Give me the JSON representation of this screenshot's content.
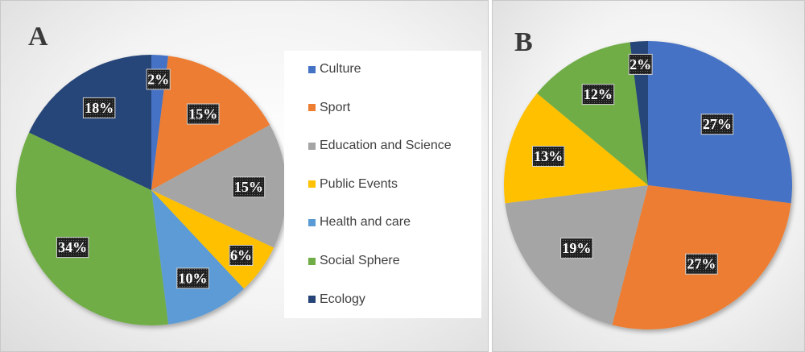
{
  "chart_data": [
    {
      "type": "pie",
      "panel_label": "A",
      "start_angle_deg": 0,
      "direction": "clockwise",
      "legend": "right",
      "slices": [
        {
          "name": "Culture",
          "value": 2,
          "label": "2%",
          "color": "#4472C4"
        },
        {
          "name": "Sport",
          "value": 15,
          "label": "15%",
          "color": "#ED7D31"
        },
        {
          "name": "Education and Science",
          "value": 15,
          "label": "15%",
          "color": "#A5A5A5"
        },
        {
          "name": "Public Events",
          "value": 6,
          "label": "6%",
          "color": "#FFC000"
        },
        {
          "name": "Health and care",
          "value": 10,
          "label": "10%",
          "color": "#5B9BD5"
        },
        {
          "name": "Social Sphere",
          "value": 34,
          "label": "34%",
          "color": "#70AD47"
        },
        {
          "name": "Ecology",
          "value": 18,
          "label": "18%",
          "color": "#264478"
        }
      ]
    },
    {
      "type": "pie",
      "panel_label": "B",
      "start_angle_deg": 0,
      "direction": "clockwise",
      "legend": "none",
      "slices": [
        {
          "value": 27,
          "label": "27%",
          "color": "#4472C4"
        },
        {
          "value": 27,
          "label": "27%",
          "color": "#ED7D31"
        },
        {
          "value": 19,
          "label": "19%",
          "color": "#A5A5A5"
        },
        {
          "value": 13,
          "label": "13%",
          "color": "#FFC000"
        },
        {
          "value": 12,
          "label": "12%",
          "color": "#70AD47"
        },
        {
          "value": 2,
          "label": "2%",
          "color": "#264478"
        }
      ]
    }
  ]
}
